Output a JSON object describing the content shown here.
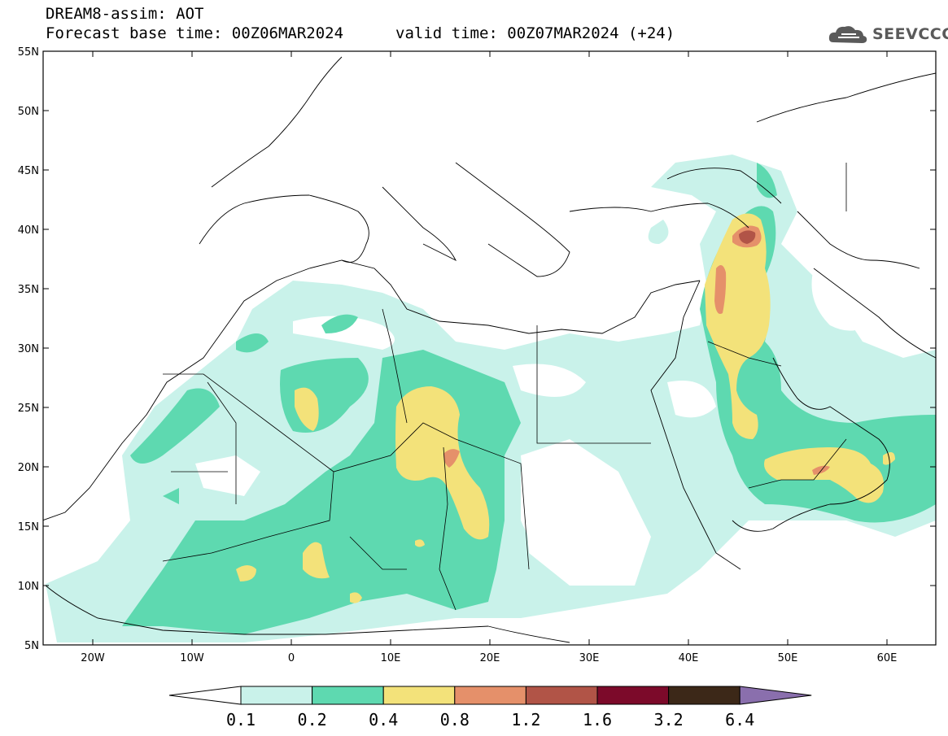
{
  "header": {
    "title_line1": "DREAM8-assim: AOT",
    "base_time": "Forecast base time: 00Z06MAR2024",
    "valid_time": "valid time: 00Z07MAR2024 (+24)",
    "logo_text": "SEEVCCC",
    "logo_icon": "cloud-icon"
  },
  "axes": {
    "lat_labels": [
      "55N",
      "50N",
      "45N",
      "40N",
      "35N",
      "30N",
      "25N",
      "20N",
      "15N",
      "10N",
      "5N"
    ],
    "lon_labels": [
      "20W",
      "10W",
      "0",
      "10E",
      "20E",
      "30E",
      "40E",
      "50E",
      "60E"
    ]
  },
  "legend": {
    "labels": [
      "0.1",
      "0.2",
      "0.4",
      "0.8",
      "1.2",
      "1.6",
      "3.2",
      "6.4"
    ],
    "colors": [
      "#c9f2ea",
      "#5ed9b0",
      "#f3e27a",
      "#e5906a",
      "#b15447",
      "#7c0a2a",
      "#3c2818",
      "#8a6fad"
    ]
  },
  "colors": {
    "c1": "#c9f2ea",
    "c2": "#5ed9b0",
    "c3": "#f3e27a",
    "c4": "#e5906a",
    "c5": "#b15447",
    "c6": "#7c0a2a"
  }
}
